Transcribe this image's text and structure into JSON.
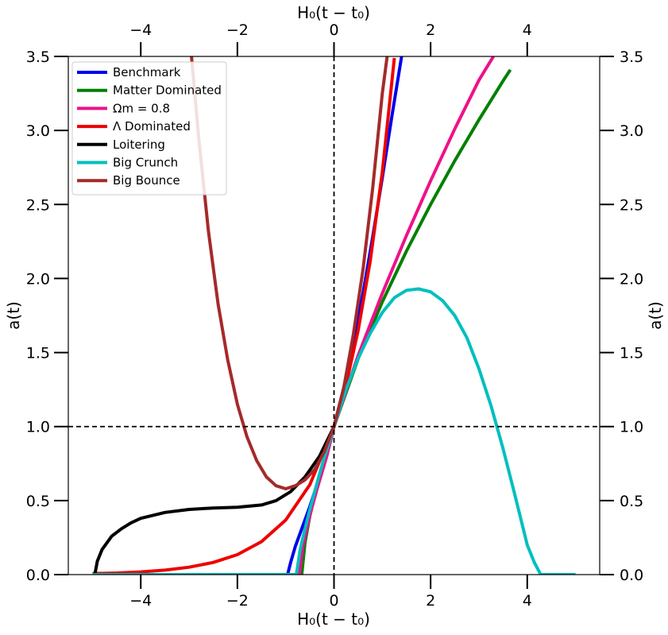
{
  "chart_data": {
    "type": "line",
    "xlabel_top": "H₀(t − t₀)",
    "xlabel_bottom": "H₀(t − t₀)",
    "ylabel_left": "a(t)",
    "ylabel_right": "a(t)",
    "xlim": [
      -5.5,
      5.5
    ],
    "ylim": [
      0,
      3.5
    ],
    "xticks": [
      -4,
      -2,
      0,
      2,
      4
    ],
    "xtick_labels": [
      "−4",
      "−2",
      "0",
      "2",
      "4"
    ],
    "yticks": [
      0.0,
      0.5,
      1.0,
      1.5,
      2.0,
      2.5,
      3.0,
      3.5
    ],
    "ytick_labels": [
      "0.0",
      "0.5",
      "1.0",
      "1.5",
      "2.0",
      "2.5",
      "3.0",
      "3.5"
    ],
    "grid": false,
    "legend_position": "top-left",
    "reference_lines": [
      {
        "orientation": "vertical",
        "value": 0,
        "style": "dashed",
        "color": "#000000"
      },
      {
        "orientation": "horizontal",
        "value": 1.0,
        "style": "dashed",
        "color": "#000000"
      }
    ],
    "series": [
      {
        "name": "Benchmark",
        "color": "#0000ee",
        "x": [
          -5.0,
          -0.96,
          -0.9,
          -0.8,
          -0.7,
          -0.6,
          -0.5,
          -0.4,
          -0.3,
          -0.2,
          -0.1,
          0.0,
          0.2,
          0.4,
          0.6,
          0.8,
          1.0,
          1.2,
          1.4
        ],
        "y": [
          0.0,
          0.0,
          0.08,
          0.19,
          0.28,
          0.37,
          0.46,
          0.56,
          0.66,
          0.77,
          0.88,
          1.0,
          1.26,
          1.56,
          1.9,
          2.28,
          2.68,
          3.1,
          3.5
        ]
      },
      {
        "name": "Matter Dominated",
        "color": "#008000",
        "x": [
          -0.667,
          -0.6,
          -0.5,
          -0.4,
          -0.3,
          -0.2,
          -0.1,
          0.0,
          0.5,
          1.0,
          1.5,
          2.0,
          2.5,
          3.0,
          3.5,
          3.65
        ],
        "y": [
          0.0,
          0.215,
          0.397,
          0.543,
          0.669,
          0.783,
          0.894,
          1.0,
          1.458,
          1.842,
          2.185,
          2.5,
          2.795,
          3.072,
          3.335,
          3.41
        ]
      },
      {
        "name": "Ωm = 0.8",
        "color": "#ee1188",
        "x": [
          -0.72,
          -0.65,
          -0.55,
          -0.45,
          -0.35,
          -0.25,
          -0.15,
          -0.05,
          0.0,
          0.5,
          1.0,
          1.5,
          2.0,
          2.5,
          3.0,
          3.3
        ],
        "y": [
          0.0,
          0.18,
          0.33,
          0.46,
          0.58,
          0.69,
          0.8,
          0.93,
          1.0,
          1.48,
          1.9,
          2.29,
          2.66,
          3.01,
          3.34,
          3.5
        ]
      },
      {
        "name": "Λ Dominated",
        "color": "#ee0000",
        "x": [
          -5.0,
          -4.5,
          -4.0,
          -3.5,
          -3.0,
          -2.5,
          -2.0,
          -1.5,
          -1.0,
          -0.5,
          0.0,
          0.25,
          0.5,
          0.75,
          1.0,
          1.25
        ],
        "y": [
          0.007,
          0.011,
          0.018,
          0.03,
          0.05,
          0.082,
          0.135,
          0.223,
          0.368,
          0.607,
          1.0,
          1.284,
          1.649,
          2.117,
          2.718,
          3.49
        ]
      },
      {
        "name": "Loitering",
        "color": "#000000",
        "x": [
          -4.95,
          -4.9,
          -4.8,
          -4.6,
          -4.4,
          -4.2,
          -4.0,
          -3.5,
          -3.0,
          -2.5,
          -2.0,
          -1.5,
          -1.2,
          -0.9,
          -0.6,
          -0.3,
          0.0
        ],
        "y": [
          0.0,
          0.09,
          0.17,
          0.26,
          0.31,
          0.35,
          0.38,
          0.42,
          0.44,
          0.45,
          0.455,
          0.47,
          0.5,
          0.56,
          0.66,
          0.8,
          1.0
        ]
      },
      {
        "name": "Big Crunch",
        "color": "#00bfbf",
        "x": [
          -5.0,
          -0.78,
          -0.7,
          -0.6,
          -0.5,
          -0.4,
          -0.3,
          -0.2,
          -0.1,
          0.0,
          0.25,
          0.5,
          0.75,
          1.0,
          1.25,
          1.5,
          1.75,
          2.0,
          2.25,
          2.5,
          2.75,
          3.0,
          3.25,
          3.5,
          3.75,
          4.0,
          4.15,
          4.28,
          5.0
        ],
        "y": [
          0.0,
          0.0,
          0.17,
          0.31,
          0.44,
          0.56,
          0.68,
          0.79,
          0.89,
          1.0,
          1.25,
          1.46,
          1.63,
          1.77,
          1.87,
          1.92,
          1.93,
          1.91,
          1.85,
          1.75,
          1.6,
          1.39,
          1.14,
          0.85,
          0.53,
          0.2,
          0.08,
          0.0,
          0.0
        ]
      },
      {
        "name": "Big Bounce",
        "color": "#a52a2a",
        "x": [
          -2.95,
          -2.8,
          -2.6,
          -2.4,
          -2.2,
          -2.0,
          -1.8,
          -1.6,
          -1.4,
          -1.2,
          -1.0,
          -0.8,
          -0.6,
          -0.4,
          -0.2,
          0.0,
          0.2,
          0.4,
          0.6,
          0.8,
          1.0,
          1.1
        ],
        "y": [
          3.5,
          2.95,
          2.32,
          1.83,
          1.45,
          1.15,
          0.93,
          0.77,
          0.66,
          0.6,
          0.58,
          0.6,
          0.64,
          0.71,
          0.83,
          1.0,
          1.26,
          1.62,
          2.06,
          2.61,
          3.25,
          3.5
        ]
      }
    ]
  }
}
